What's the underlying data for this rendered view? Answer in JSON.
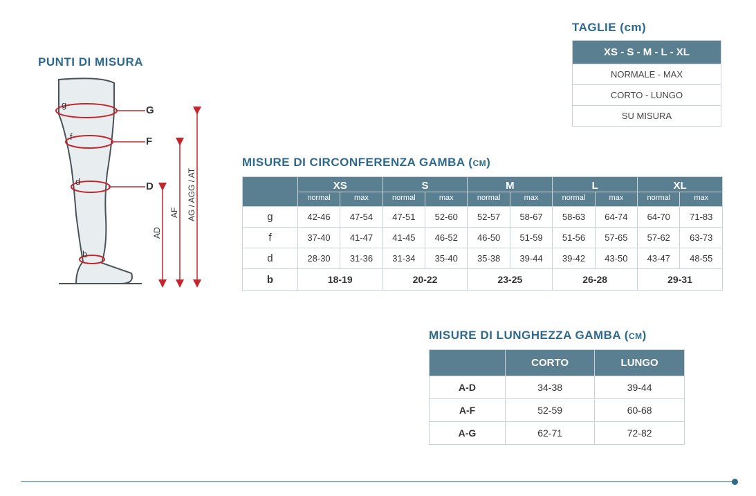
{
  "colors": {
    "accent": "#2d6a8e",
    "tableHeader": "#5a7f91",
    "border": "#c9d2d7",
    "measureLine": "#c1272d",
    "legFill": "#e8edf0",
    "legStroke": "#4a5258"
  },
  "taglie": {
    "title": "TAGLIE (cm)",
    "header": "XS - S - M - L - XL",
    "rows": [
      "NORMALE - MAX",
      "CORTO - LUNGO",
      "SU MISURA"
    ]
  },
  "punti": {
    "title": "PUNTI DI MISURA",
    "labels": {
      "g_lower": "g",
      "G": "G",
      "f_lower": "f",
      "F": "F",
      "d_lower": "d",
      "D": "D",
      "b_lower": "b"
    },
    "heightLabels": {
      "AD": "AD",
      "AF": "AF",
      "AG": "AG / AGG / AT"
    }
  },
  "circ": {
    "title": "MISURE DI CIRCONFERENZA GAMBA (cm)",
    "sizes": [
      "XS",
      "S",
      "M",
      "L",
      "XL"
    ],
    "subcols": [
      "normal",
      "max"
    ],
    "rows": [
      {
        "label": "g",
        "vals": [
          "42-46",
          "47-54",
          "47-51",
          "52-60",
          "52-57",
          "58-67",
          "58-63",
          "64-74",
          "64-70",
          "71-83"
        ]
      },
      {
        "label": "f",
        "vals": [
          "37-40",
          "41-47",
          "41-45",
          "46-52",
          "46-50",
          "51-59",
          "51-56",
          "57-65",
          "57-62",
          "63-73"
        ]
      },
      {
        "label": "d",
        "vals": [
          "28-30",
          "31-36",
          "31-34",
          "35-40",
          "35-38",
          "39-44",
          "39-42",
          "43-50",
          "43-47",
          "48-55"
        ]
      }
    ],
    "bRow": {
      "label": "b",
      "vals": [
        "18-19",
        "20-22",
        "23-25",
        "26-28",
        "29-31"
      ]
    }
  },
  "len": {
    "title": "MISURE DI LUNGHEZZA GAMBA (cm)",
    "cols": [
      "CORTO",
      "LUNGO"
    ],
    "rows": [
      {
        "label": "A-D",
        "vals": [
          "34-38",
          "39-44"
        ]
      },
      {
        "label": "A-F",
        "vals": [
          "52-59",
          "60-68"
        ]
      },
      {
        "label": "A-G",
        "vals": [
          "62-71",
          "72-82"
        ]
      }
    ]
  }
}
